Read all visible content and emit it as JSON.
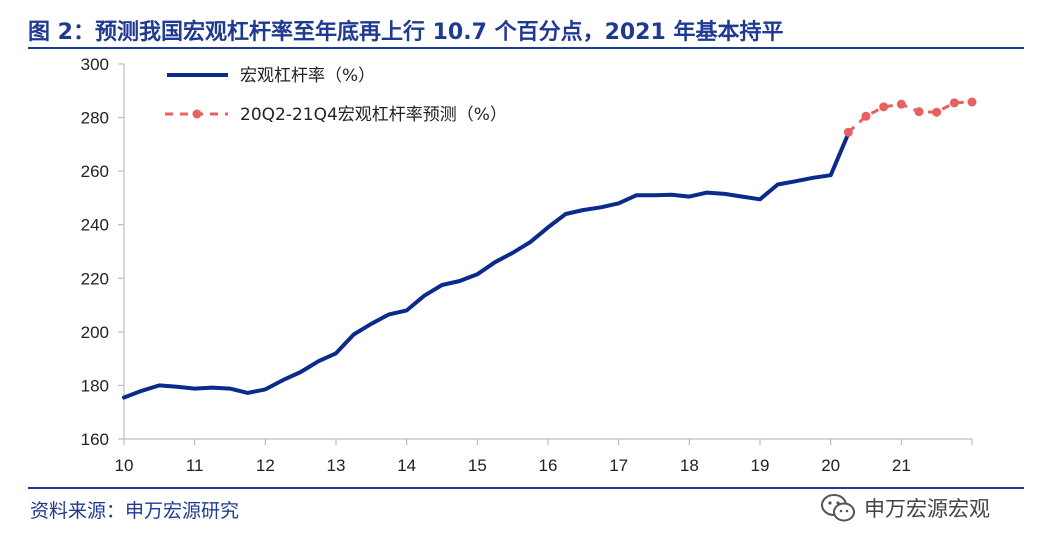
{
  "header": {
    "title": "图 2：预测我国宏观杠杆率至年底再上行 10.7 个百分点，2021 年基本持平"
  },
  "footer": {
    "source": "资料来源：申万宏源研究",
    "brand": "申万宏源宏观",
    "brand_icon": "wechat-icon"
  },
  "colors": {
    "title": "#1f3a93",
    "actual": "#0a2a8c",
    "forecast": "#e8605f"
  },
  "chart_data": {
    "type": "line",
    "title": "",
    "xlabel": "",
    "ylabel": "",
    "xlim": [
      10,
      22
    ],
    "ylim": [
      160,
      300
    ],
    "y_ticks": [
      160,
      180,
      200,
      220,
      240,
      260,
      280,
      300
    ],
    "x_ticks": [
      10,
      11,
      12,
      13,
      14,
      15,
      16,
      17,
      18,
      19,
      20,
      21
    ],
    "x_tick_labels": [
      "10",
      "11",
      "12",
      "13",
      "14",
      "15",
      "16",
      "17",
      "18",
      "19",
      "20",
      "21"
    ],
    "grid": false,
    "legend_position": "top-left",
    "series": [
      {
        "name": "宏观杠杆率（%）",
        "style": "solid",
        "x": [
          10.0,
          10.25,
          10.5,
          10.75,
          11.0,
          11.25,
          11.5,
          11.75,
          12.0,
          12.25,
          12.5,
          12.75,
          13.0,
          13.25,
          13.5,
          13.75,
          14.0,
          14.25,
          14.5,
          14.75,
          15.0,
          15.25,
          15.5,
          15.75,
          16.0,
          16.25,
          16.5,
          16.75,
          17.0,
          17.25,
          17.5,
          17.75,
          18.0,
          18.25,
          18.5,
          18.75,
          19.0,
          19.25,
          19.5,
          19.75,
          20.0,
          20.25
        ],
        "values": [
          175.5,
          178,
          180,
          179.5,
          178.8,
          179.2,
          178.8,
          177.2,
          178.5,
          182,
          185,
          189,
          192,
          199,
          203,
          206.5,
          208,
          213.5,
          217.5,
          219,
          221.5,
          226,
          229.5,
          233.5,
          239,
          244,
          245.5,
          246.5,
          248,
          251,
          251,
          251.2,
          250.5,
          252,
          251.5,
          250.5,
          249.5,
          255,
          256.2,
          257.5,
          258.5,
          274
        ]
      },
      {
        "name": "20Q2-21Q4宏观杠杆率预测（%）",
        "style": "dashed-markers",
        "x": [
          20.25,
          20.5,
          20.75,
          21.0,
          21.25,
          21.5,
          21.75,
          22.0
        ],
        "values": [
          274.5,
          280.5,
          284,
          285,
          282.2,
          282,
          285.5,
          285.8
        ]
      }
    ]
  }
}
